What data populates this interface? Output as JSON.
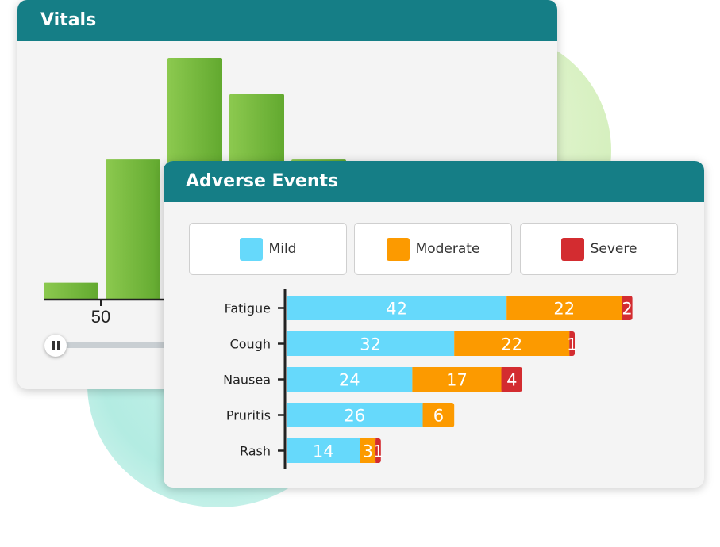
{
  "colors": {
    "header": "#157e86",
    "mild": "#66d9fb",
    "moderate": "#fc9a00",
    "severe": "#d32c30",
    "bar_green": "#78bb3f"
  },
  "vitals": {
    "title": "Vitals",
    "visible_tick_label": "50",
    "slider_icon": "pause-icon"
  },
  "adverse_events": {
    "title": "Adverse Events",
    "legend": [
      {
        "label": "Mild",
        "color": "#66d9fb"
      },
      {
        "label": "Moderate",
        "color": "#fc9a00"
      },
      {
        "label": "Severe",
        "color": "#d32c30"
      }
    ]
  },
  "chart_data": [
    {
      "type": "bar",
      "title": "Vitals",
      "xlabel": "",
      "ylabel": "",
      "tick_labels": [
        "50"
      ],
      "bin_heights_relative": [
        0.07,
        0.58,
        1.0,
        0.85,
        0.58
      ],
      "note_visible": "partially occluded histogram"
    },
    {
      "type": "bar",
      "orientation": "horizontal",
      "stacked": true,
      "title": "Adverse Events",
      "categories": [
        "Fatigue",
        "Cough",
        "Nausea",
        "Pruritis",
        "Rash"
      ],
      "series": [
        {
          "name": "Mild",
          "color": "#66d9fb",
          "values": [
            42,
            32,
            24,
            26,
            14
          ]
        },
        {
          "name": "Moderate",
          "color": "#fc9a00",
          "values": [
            22,
            22,
            17,
            6,
            3
          ]
        },
        {
          "name": "Severe",
          "color": "#d32c30",
          "values": [
            2,
            1,
            4,
            null,
            1
          ]
        }
      ],
      "legend_position": "top",
      "grid": false
    }
  ]
}
